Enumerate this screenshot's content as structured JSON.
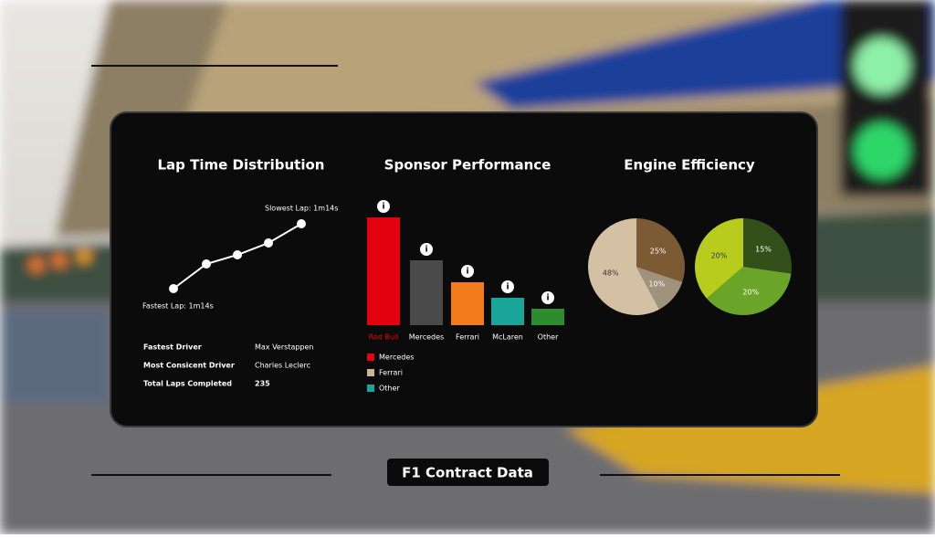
{
  "chart_data": [
    {
      "type": "line",
      "title": "Lap Time Distribution",
      "values": [
        0,
        27,
        37,
        50,
        71
      ],
      "color": "#ffffff",
      "annotations": [
        "Fastest Lap: 1m14s",
        "Slowest Lap: 1m14s"
      ]
    },
    {
      "type": "bar",
      "title": "Sponsor Performance",
      "categories": [
        "Red Bull",
        "Mercedes",
        "Ferrari",
        "McLaren",
        "Other"
      ],
      "values": [
        118,
        71,
        47,
        30,
        18
      ],
      "colors": [
        "#e3000f",
        "#4a4a4a",
        "#f47a1c",
        "#1aa59a",
        "#2e8b2e"
      ],
      "legend": [
        {
          "name": "Mercedes",
          "color": "#e3000f"
        },
        {
          "name": "Ferrari",
          "color": "#c9b596"
        },
        {
          "name": "Other",
          "color": "#1aa59a"
        }
      ]
    },
    {
      "type": "pie",
      "title": "Engine Efficiency",
      "values": [
        25,
        10,
        48
      ],
      "value_labels": [
        "25%",
        "10%",
        "48%"
      ],
      "colors": [
        "#7b5a34",
        "#a0927c",
        "#d4c1a4"
      ]
    },
    {
      "type": "pie",
      "values": [
        15,
        20,
        20
      ],
      "value_labels": [
        "15%",
        "20%",
        "20%"
      ],
      "colors": [
        "#33501a",
        "#6aa52a",
        "#b7cc1c"
      ]
    }
  ],
  "stats": [
    [
      "Fastest Driver",
      "Max Verstappen"
    ],
    [
      "Most Consicent Driver",
      "Charles Leclerc"
    ],
    [
      "Total Laps Completed",
      235
    ]
  ],
  "footer_title": "F1 Contract Data"
}
